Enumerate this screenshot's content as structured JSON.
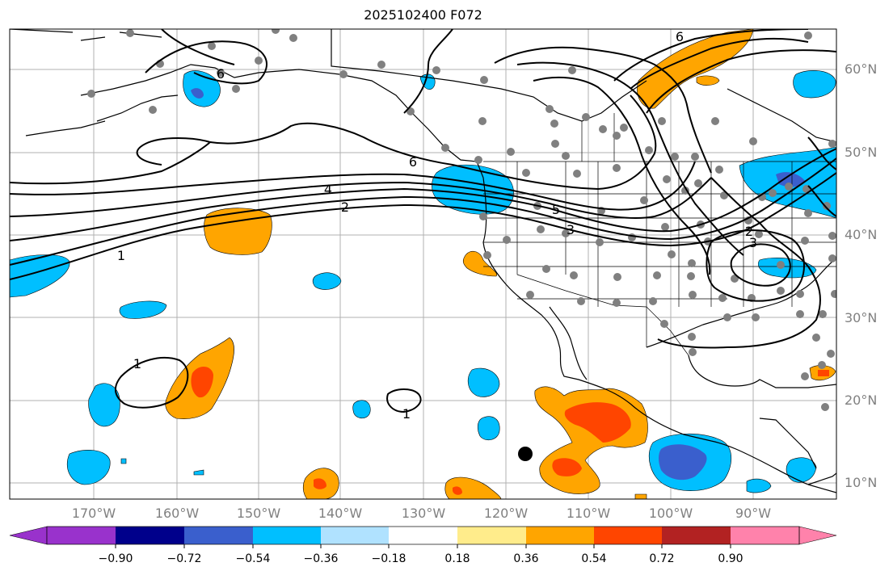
{
  "title": "2025102400 F072",
  "lat_labels": [
    "60°N",
    "50°N",
    "40°N",
    "30°N",
    "20°N",
    "10°N"
  ],
  "lon_labels": [
    "170°W",
    "160°W",
    "150°W",
    "140°W",
    "130°W",
    "120°W",
    "110°W",
    "100°W",
    "90°W"
  ],
  "contour_labels": [
    "6",
    "6",
    "6",
    "4",
    "2",
    "1",
    "5",
    "3",
    "2",
    "3",
    "1",
    "1"
  ],
  "colorbar": {
    "ticks": [
      "−0.90",
      "−0.72",
      "−0.54",
      "−0.36",
      "−0.18",
      "0.18",
      "0.36",
      "0.54",
      "0.72",
      "0.90"
    ],
    "colors": [
      "#9932CC",
      "#00008B",
      "#3A5FCD",
      "#00BFFF",
      "#B0E2FF",
      "#FFFFFF",
      "#FFEC8B",
      "#FFA500",
      "#FF4500",
      "#B22222",
      "#FF82AB"
    ]
  },
  "colors": {
    "positive_fill": "#FFA500",
    "strong_positive_fill": "#FF4500",
    "negative_fill": "#00BFFF",
    "strong_negative_fill": "#3A5FCD",
    "station_marker": "#808080",
    "grid": "#b0b0b0",
    "contour": "#000000"
  },
  "map_extent": {
    "lon": [
      "-178",
      "-80"
    ],
    "lat": [
      "8",
      "65"
    ]
  }
}
